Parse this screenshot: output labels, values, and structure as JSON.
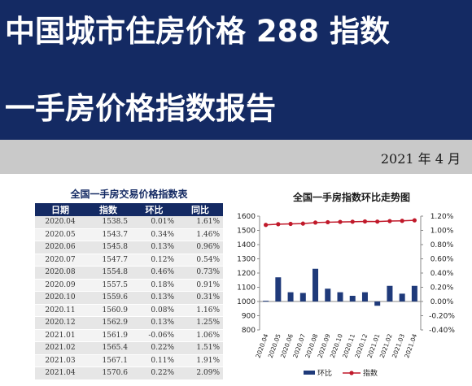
{
  "header": {
    "title_line1": "中国城市住房价格 288 指数",
    "title_line2": "一手房价格指数报告",
    "date": "2021 年 4 月"
  },
  "table": {
    "title": "全国一手房交易价格指数表",
    "columns": [
      "日期",
      "指数",
      "环比",
      "同比"
    ],
    "rows": [
      [
        "2020.04",
        "1538.5",
        "0.01%",
        "1.61%"
      ],
      [
        "2020.05",
        "1543.7",
        "0.34%",
        "1.46%"
      ],
      [
        "2020.06",
        "1545.8",
        "0.13%",
        "0.96%"
      ],
      [
        "2020.07",
        "1547.7",
        "0.12%",
        "0.54%"
      ],
      [
        "2020.08",
        "1554.8",
        "0.46%",
        "0.73%"
      ],
      [
        "2020.09",
        "1557.5",
        "0.18%",
        "0.91%"
      ],
      [
        "2020.10",
        "1559.6",
        "0.13%",
        "0.31%"
      ],
      [
        "2020.11",
        "1560.9",
        "0.08%",
        "1.16%"
      ],
      [
        "2020.12",
        "1562.9",
        "0.13%",
        "1.25%"
      ],
      [
        "2021.01",
        "1561.9",
        "-0.06%",
        "1.06%"
      ],
      [
        "2021.02",
        "1565.4",
        "0.22%",
        "1.51%"
      ],
      [
        "2021.03",
        "1567.1",
        "0.11%",
        "1.91%"
      ],
      [
        "2021.04",
        "1570.6",
        "0.22%",
        "2.09%"
      ]
    ]
  },
  "chart_data": {
    "type": "bar",
    "title": "全国一手房指数环比走势图",
    "categories": [
      "2020.04",
      "2020.05",
      "2020.06",
      "2020.07",
      "2020.08",
      "2020.09",
      "2020.10",
      "2020.11",
      "2020.12",
      "2021.01",
      "2021.02",
      "2021.03",
      "2021.04"
    ],
    "series": [
      {
        "name": "环比",
        "type": "bar",
        "axis": "right",
        "unit": "%",
        "values": [
          0.01,
          0.34,
          0.13,
          0.12,
          0.46,
          0.18,
          0.13,
          0.08,
          0.13,
          -0.06,
          0.22,
          0.11,
          0.22
        ],
        "color": "#1f3a7a"
      },
      {
        "name": "指数",
        "type": "line",
        "axis": "left",
        "values": [
          1538.5,
          1543.7,
          1545.8,
          1547.7,
          1554.8,
          1557.5,
          1559.6,
          1560.9,
          1562.9,
          1561.9,
          1565.4,
          1567.1,
          1570.6
        ],
        "color": "#c0192a"
      }
    ],
    "ylim_left": [
      800,
      1600
    ],
    "yticks_left": [
      "800",
      "900",
      "1000",
      "1100",
      "1200",
      "1300",
      "1400",
      "1500",
      "1600"
    ],
    "ylim_right": [
      -0.4,
      1.2
    ],
    "yticks_right": [
      "-0.40%",
      "-0.20%",
      "0.00%",
      "0.20%",
      "0.40%",
      "0.60%",
      "0.80%",
      "1.00%",
      "1.20%"
    ],
    "legend_position": "bottom",
    "grid": false
  },
  "colors": {
    "header_bg": "#142a63",
    "date_bar_bg": "#c9c9c9",
    "bar": "#1f3a7a",
    "line": "#c0192a"
  }
}
